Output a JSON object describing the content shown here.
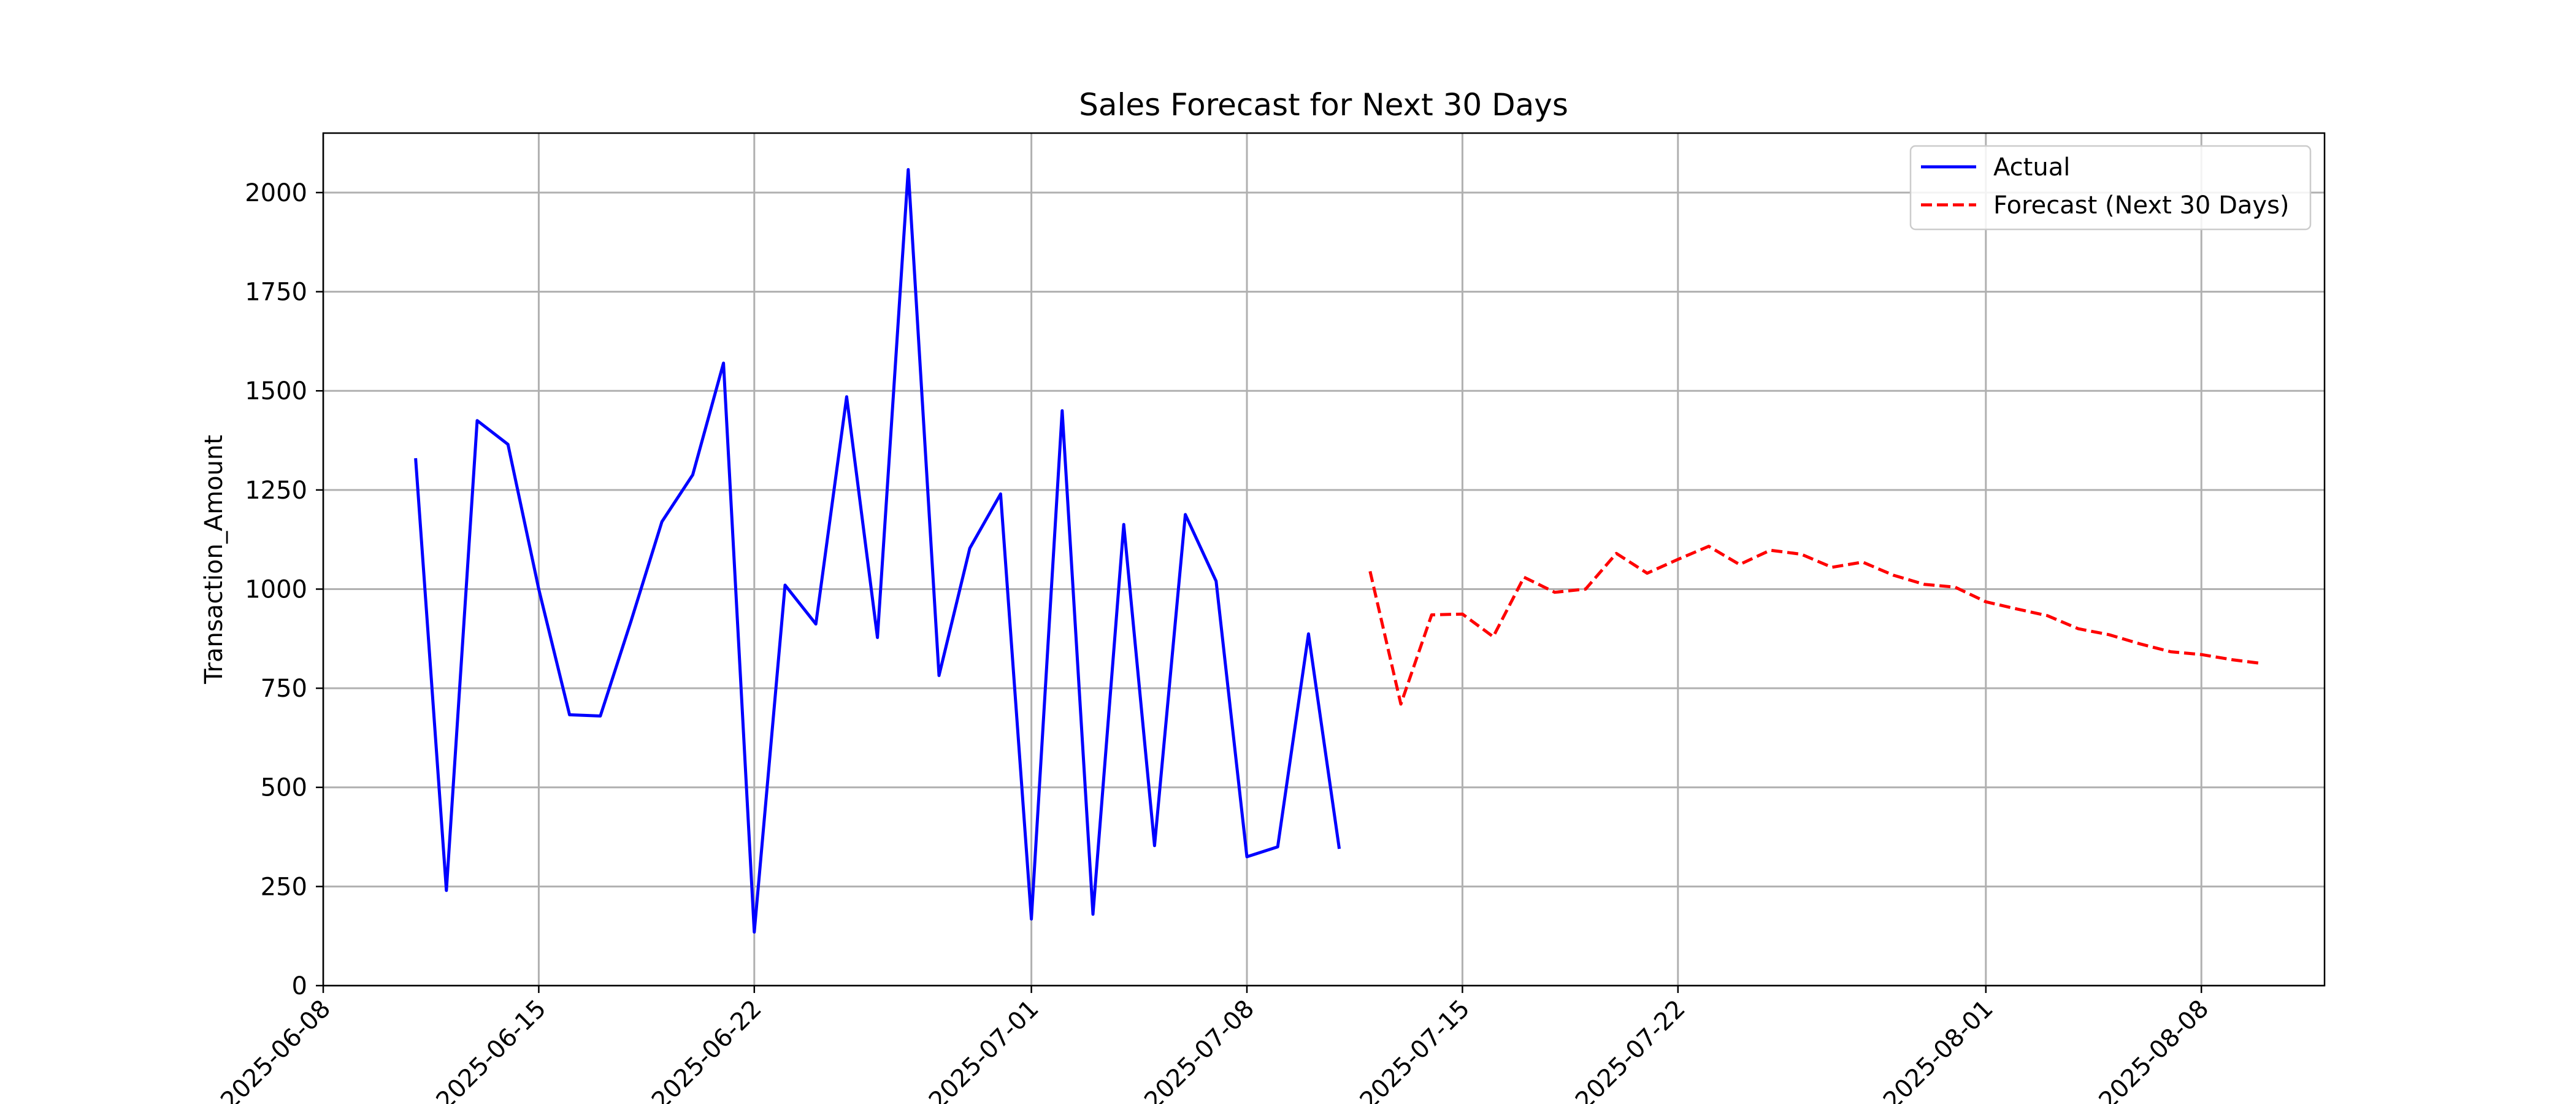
{
  "chart_data": {
    "type": "line",
    "title": "Sales Forecast for Next 30 Days",
    "xlabel": "",
    "ylabel": "Transaction_Amount",
    "xlim": [
      "2025-06-08",
      "2025-08-12"
    ],
    "ylim": [
      0,
      2150
    ],
    "x_ticks": [
      "2025-06-08",
      "2025-06-15",
      "2025-06-22",
      "2025-07-01",
      "2025-07-08",
      "2025-07-15",
      "2025-07-22",
      "2025-08-01",
      "2025-08-08"
    ],
    "y_ticks": [
      0,
      250,
      500,
      750,
      1000,
      1250,
      1500,
      1750,
      2000
    ],
    "grid": true,
    "legend_position": "top-right",
    "series": [
      {
        "name": "Actual",
        "color": "#0000ff",
        "style": "solid",
        "points": [
          [
            "2025-06-11",
            1330
          ],
          [
            "2025-06-12",
            240
          ],
          [
            "2025-06-13",
            1425
          ],
          [
            "2025-06-14",
            1365
          ],
          [
            "2025-06-15",
            1000
          ],
          [
            "2025-06-16",
            683
          ],
          [
            "2025-06-17",
            680
          ],
          [
            "2025-06-18",
            920
          ],
          [
            "2025-06-19",
            1170
          ],
          [
            "2025-06-20",
            1288
          ],
          [
            "2025-06-21",
            1570
          ],
          [
            "2025-06-22",
            135
          ],
          [
            "2025-06-23",
            1010
          ],
          [
            "2025-06-24",
            912
          ],
          [
            "2025-06-25",
            1485
          ],
          [
            "2025-06-26",
            878
          ],
          [
            "2025-06-27",
            2058
          ],
          [
            "2025-06-28",
            782
          ],
          [
            "2025-06-29",
            1103
          ],
          [
            "2025-06-30",
            1240
          ],
          [
            "2025-07-01",
            168
          ],
          [
            "2025-07-02",
            1450
          ],
          [
            "2025-07-03",
            180
          ],
          [
            "2025-07-04",
            1163
          ],
          [
            "2025-07-05",
            353
          ],
          [
            "2025-07-06",
            1188
          ],
          [
            "2025-07-07",
            1020
          ],
          [
            "2025-07-08",
            325
          ],
          [
            "2025-07-09",
            350
          ],
          [
            "2025-07-10",
            887
          ],
          [
            "2025-07-11",
            345
          ]
        ]
      },
      {
        "name": "Forecast (Next 30 Days)",
        "color": "#ff0000",
        "style": "dashed",
        "points": [
          [
            "2025-07-12",
            1045
          ],
          [
            "2025-07-13",
            710
          ],
          [
            "2025-07-14",
            935
          ],
          [
            "2025-07-15",
            937
          ],
          [
            "2025-07-16",
            880
          ],
          [
            "2025-07-17",
            1030
          ],
          [
            "2025-07-18",
            992
          ],
          [
            "2025-07-19",
            1000
          ],
          [
            "2025-07-20",
            1090
          ],
          [
            "2025-07-21",
            1040
          ],
          [
            "2025-07-22",
            1075
          ],
          [
            "2025-07-23",
            1108
          ],
          [
            "2025-07-24",
            1062
          ],
          [
            "2025-07-25",
            1098
          ],
          [
            "2025-07-26",
            1088
          ],
          [
            "2025-07-27",
            1055
          ],
          [
            "2025-07-28",
            1068
          ],
          [
            "2025-07-29",
            1035
          ],
          [
            "2025-07-30",
            1012
          ],
          [
            "2025-07-31",
            1005
          ],
          [
            "2025-08-01",
            968
          ],
          [
            "2025-08-02",
            950
          ],
          [
            "2025-08-03",
            933
          ],
          [
            "2025-08-04",
            900
          ],
          [
            "2025-08-05",
            885
          ],
          [
            "2025-08-06",
            862
          ],
          [
            "2025-08-07",
            842
          ],
          [
            "2025-08-08",
            835
          ],
          [
            "2025-08-09",
            822
          ],
          [
            "2025-08-10",
            812
          ]
        ]
      }
    ]
  }
}
